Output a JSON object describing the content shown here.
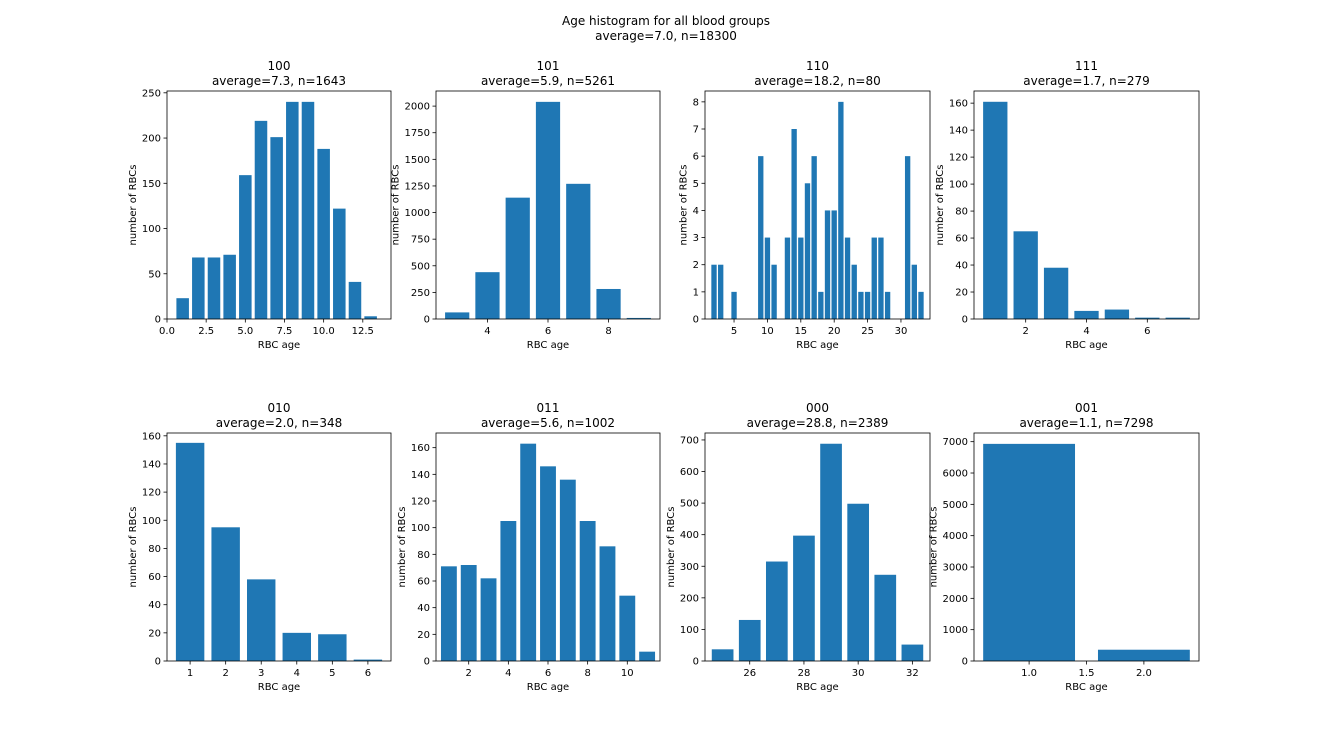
{
  "figure": {
    "suptitle_line1": "Age histogram for all blood groups",
    "suptitle_line2": "average=7.0, n=18300",
    "bar_color": "#1f77b4"
  },
  "chart_data": [
    {
      "type": "bar",
      "title_line1": "100",
      "title_line2": "average=7.3, n=1643",
      "xlabel": "RBC age",
      "ylabel": "number of RBCs",
      "bar_width": 0.8,
      "x": [
        1,
        2,
        3,
        4,
        5,
        6,
        7,
        8,
        9,
        10,
        11,
        12,
        13
      ],
      "values": [
        23,
        68,
        68,
        71,
        159,
        219,
        201,
        240,
        240,
        188,
        122,
        41,
        3
      ],
      "xlim": [
        0,
        14.3
      ],
      "ylim": [
        0,
        252
      ],
      "xticks": [
        0,
        2.5,
        5,
        7.5,
        10,
        12.5
      ],
      "xticklabels": [
        "0.0",
        "2.5",
        "5.0",
        "7.5",
        "10.0",
        "12.5"
      ],
      "yticks": [
        0,
        50,
        100,
        150,
        200,
        250
      ],
      "yticklabels": [
        "0",
        "50",
        "100",
        "150",
        "200",
        "250"
      ]
    },
    {
      "type": "bar",
      "title_line1": "101",
      "title_line2": "average=5.9, n=5261",
      "xlabel": "RBC age",
      "ylabel": "number of RBCs",
      "bar_width": 0.8,
      "x": [
        3,
        4,
        5,
        6,
        7,
        8,
        9
      ],
      "values": [
        62,
        440,
        1140,
        2040,
        1270,
        282,
        10
      ],
      "xlim": [
        2.3,
        9.7
      ],
      "ylim": [
        0,
        2142
      ],
      "xticks": [
        4,
        6,
        8
      ],
      "xticklabels": [
        "4",
        "6",
        "8"
      ],
      "yticks": [
        0,
        250,
        500,
        750,
        1000,
        1250,
        1500,
        1750,
        2000
      ],
      "yticklabels": [
        "0",
        "250",
        "500",
        "750",
        "1000",
        "1250",
        "1500",
        "1750",
        "2000"
      ]
    },
    {
      "type": "bar",
      "title_line1": "110",
      "title_line2": "average=18.2, n=80",
      "xlabel": "RBC age",
      "ylabel": "number of RBCs",
      "bar_width": 0.8,
      "x": [
        2,
        3,
        5,
        9,
        10,
        11,
        13,
        14,
        15,
        16,
        17,
        18,
        19,
        20,
        21,
        22,
        23,
        24,
        25,
        26,
        27,
        28,
        31,
        32,
        33
      ],
      "values": [
        2,
        2,
        1,
        6,
        3,
        2,
        3,
        7,
        3,
        5,
        6,
        1,
        4,
        4,
        8,
        3,
        2,
        1,
        1,
        3,
        3,
        1,
        6,
        2,
        1
      ],
      "xlim": [
        0.65,
        34.35
      ],
      "ylim": [
        0,
        8.4
      ],
      "xticks": [
        5,
        10,
        15,
        20,
        25,
        30
      ],
      "xticklabels": [
        "5",
        "10",
        "15",
        "20",
        "25",
        "30"
      ],
      "yticks": [
        0,
        1,
        2,
        3,
        4,
        5,
        6,
        7,
        8
      ],
      "yticklabels": [
        "0",
        "1",
        "2",
        "3",
        "4",
        "5",
        "6",
        "7",
        "8"
      ]
    },
    {
      "type": "bar",
      "title_line1": "111",
      "title_line2": "average=1.7, n=279",
      "xlabel": "RBC age",
      "ylabel": "number of RBCs",
      "bar_width": 0.8,
      "x": [
        1,
        2,
        3,
        4,
        5,
        6,
        7
      ],
      "values": [
        161,
        65,
        38,
        6,
        7,
        1,
        1
      ],
      "xlim": [
        0.3,
        7.7
      ],
      "ylim": [
        0,
        169
      ],
      "xticks": [
        2,
        4,
        6
      ],
      "xticklabels": [
        "2",
        "4",
        "6"
      ],
      "yticks": [
        0,
        20,
        40,
        60,
        80,
        100,
        120,
        140,
        160
      ],
      "yticklabels": [
        "0",
        "20",
        "40",
        "60",
        "80",
        "100",
        "120",
        "140",
        "160"
      ]
    },
    {
      "type": "bar",
      "title_line1": "010",
      "title_line2": "average=2.0, n=348",
      "xlabel": "RBC age",
      "ylabel": "number of RBCs",
      "bar_width": 0.8,
      "x": [
        1,
        2,
        3,
        4,
        5,
        6
      ],
      "values": [
        155,
        95,
        58,
        20,
        19,
        1
      ],
      "xlim": [
        0.35,
        6.65
      ],
      "ylim": [
        0,
        162
      ],
      "xticks": [
        1,
        2,
        3,
        4,
        5,
        6
      ],
      "xticklabels": [
        "1",
        "2",
        "3",
        "4",
        "5",
        "6"
      ],
      "yticks": [
        0,
        20,
        40,
        60,
        80,
        100,
        120,
        140,
        160
      ],
      "yticklabels": [
        "0",
        "20",
        "40",
        "60",
        "80",
        "100",
        "120",
        "140",
        "160"
      ]
    },
    {
      "type": "bar",
      "title_line1": "011",
      "title_line2": "average=5.6, n=1002",
      "xlabel": "RBC age",
      "ylabel": "number of RBCs",
      "bar_width": 0.8,
      "x": [
        1,
        2,
        3,
        4,
        5,
        6,
        7,
        8,
        9,
        10,
        11
      ],
      "values": [
        71,
        72,
        62,
        105,
        163,
        146,
        136,
        105,
        86,
        49,
        7
      ],
      "xlim": [
        0.35,
        11.65
      ],
      "ylim": [
        0,
        171
      ],
      "xticks": [
        2,
        4,
        6,
        8,
        10
      ],
      "xticklabels": [
        "2",
        "4",
        "6",
        "8",
        "10"
      ],
      "yticks": [
        0,
        20,
        40,
        60,
        80,
        100,
        120,
        140,
        160
      ],
      "yticklabels": [
        "0",
        "20",
        "40",
        "60",
        "80",
        "100",
        "120",
        "140",
        "160"
      ]
    },
    {
      "type": "bar",
      "title_line1": "000",
      "title_line2": "average=28.8, n=2389",
      "xlabel": "RBC age",
      "ylabel": "number of RBCs",
      "bar_width": 0.8,
      "x": [
        25,
        26,
        27,
        28,
        29,
        30,
        31,
        32
      ],
      "values": [
        37,
        130,
        315,
        397,
        688,
        498,
        273,
        52
      ],
      "xlim": [
        24.35,
        32.65
      ],
      "ylim": [
        0,
        722
      ],
      "xticks": [
        26,
        28,
        30,
        32
      ],
      "xticklabels": [
        "26",
        "28",
        "30",
        "32"
      ],
      "yticks": [
        0,
        100,
        200,
        300,
        400,
        500,
        600,
        700
      ],
      "yticklabels": [
        "0",
        "100",
        "200",
        "300",
        "400",
        "500",
        "600",
        "700"
      ]
    },
    {
      "type": "bar",
      "title_line1": "001",
      "title_line2": "average=1.1, n=7298",
      "xlabel": "RBC age",
      "ylabel": "number of RBCs",
      "bar_width": 0.8,
      "x": [
        1,
        2
      ],
      "values": [
        6930,
        360
      ],
      "xlim": [
        0.52,
        2.48
      ],
      "ylim": [
        0,
        7277
      ],
      "xticks": [
        1.0,
        1.5,
        2.0
      ],
      "xticklabels": [
        "1.0",
        "1.5",
        "2.0"
      ],
      "yticks": [
        0,
        1000,
        2000,
        3000,
        4000,
        5000,
        6000,
        7000
      ],
      "yticklabels": [
        "0",
        "1000",
        "2000",
        "3000",
        "4000",
        "5000",
        "6000",
        "7000"
      ]
    }
  ]
}
